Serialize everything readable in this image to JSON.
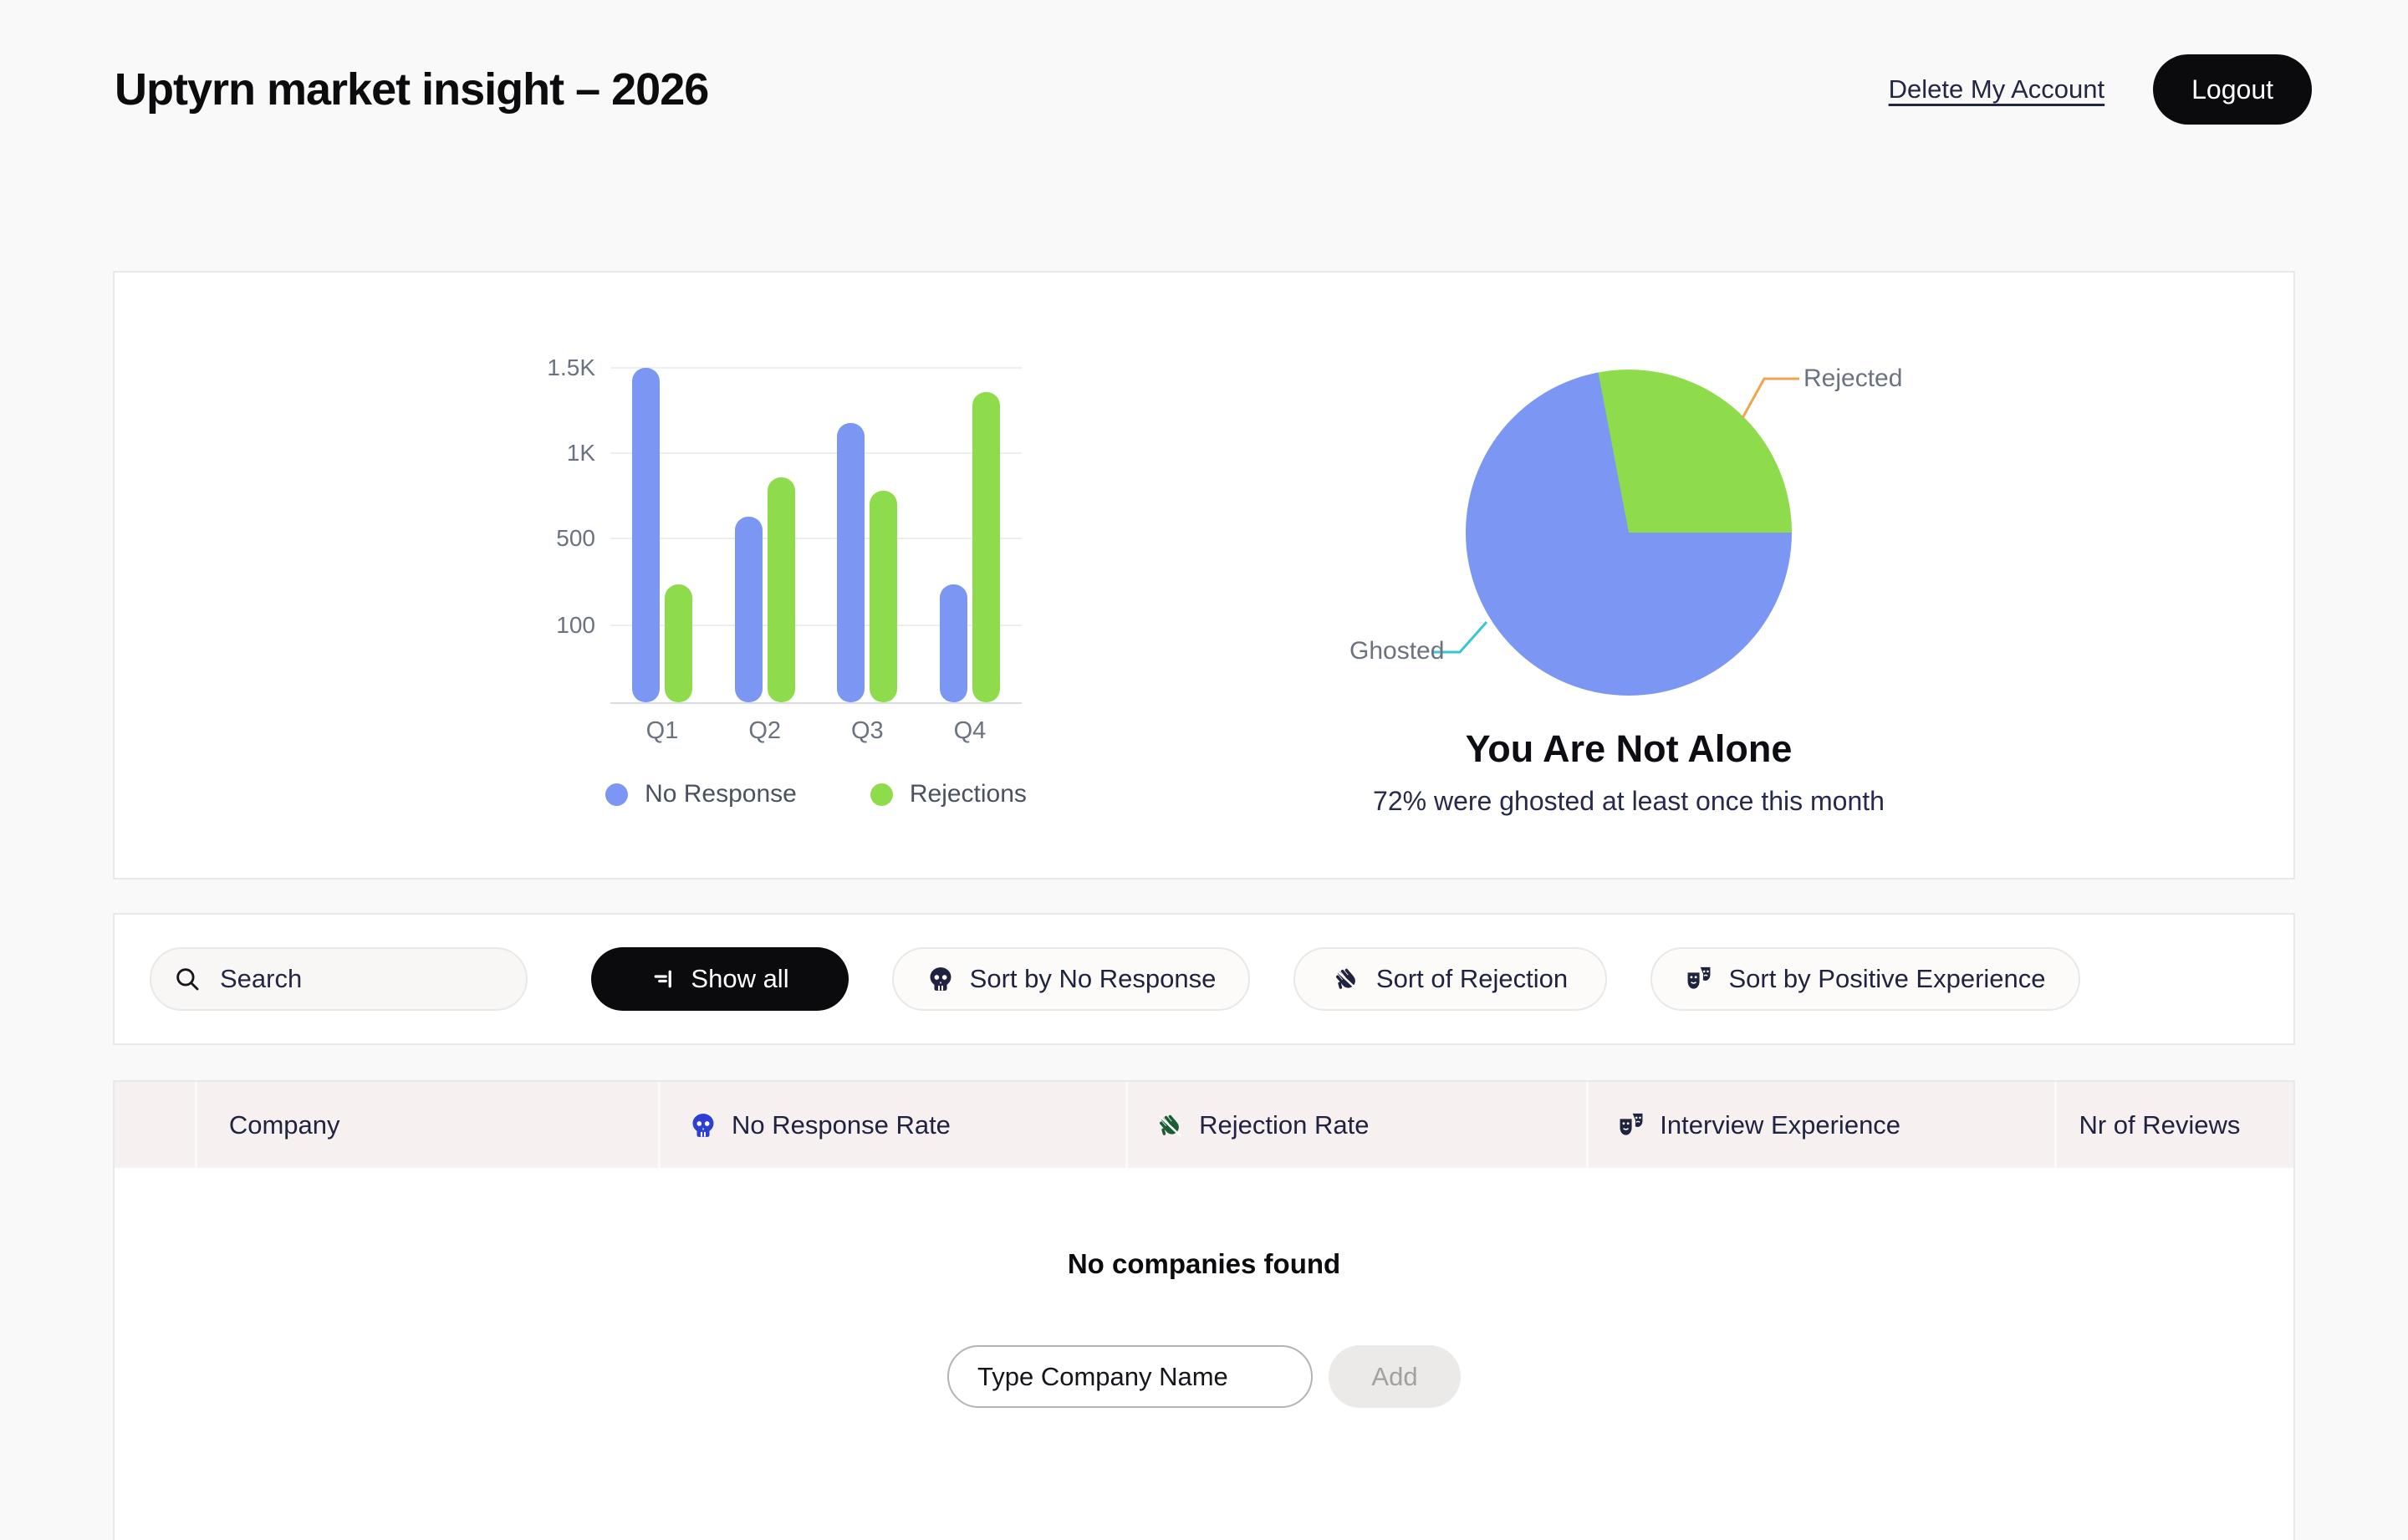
{
  "header": {
    "title": "Uptyrn market insight – 2026",
    "delete_account": "Delete My Account",
    "logout": "Logout"
  },
  "colors": {
    "page_bg": "#f9f9f9",
    "accent_black": "#0b0b0e",
    "bar_blue": "#7b96f3",
    "bar_green": "#8edc4b",
    "callout_orange": "#f2a44c",
    "callout_teal": "#38c7d2",
    "table_header_bg": "#f6f1f0",
    "skull_icon_blue": "#2e3fd4",
    "hand_icon_green": "#1b5e33"
  },
  "chart_data": [
    {
      "type": "bar",
      "categories": [
        "Q1",
        "Q2",
        "Q3",
        "Q4"
      ],
      "series": [
        {
          "name": "No Response",
          "color": "#7b96f3",
          "values": [
            1500,
            630,
            1180,
            290
          ]
        },
        {
          "name": "Rejections",
          "color": "#8edc4b",
          "values": [
            290,
            860,
            780,
            1360
          ]
        }
      ],
      "yticks": [
        {
          "label": "100",
          "value": 100
        },
        {
          "label": "500",
          "value": 500
        },
        {
          "label": "1K",
          "value": 1000
        },
        {
          "label": "1.5K",
          "value": 1500
        }
      ],
      "ylim": [
        0,
        1500
      ],
      "grid": true,
      "legend_position": "bottom"
    },
    {
      "type": "pie",
      "slices": [
        {
          "label": "Ghosted",
          "value": 72,
          "color": "#7b96f3",
          "callout_color": "#38c7d2"
        },
        {
          "label": "Rejected",
          "value": 28,
          "color": "#8edc4b",
          "callout_color": "#f2a44c"
        }
      ],
      "title": "You Are Not Alone",
      "subtitle": "72% were ghosted at least once this month"
    }
  ],
  "filters": {
    "search_placeholder": "Search",
    "show_all": "Show all",
    "sort_no_response": "Sort by No Response",
    "sort_rejection": "Sort of Rejection",
    "sort_positive": "Sort by Positive Experience"
  },
  "table": {
    "columns": [
      {
        "label": "",
        "icon": null
      },
      {
        "label": "Company",
        "icon": null
      },
      {
        "label": "No Response Rate",
        "icon": "skull"
      },
      {
        "label": "Rejection Rate",
        "icon": "hand"
      },
      {
        "label": "Interview Experience",
        "icon": "masks"
      },
      {
        "label": "Nr of Reviews",
        "icon": null
      }
    ],
    "empty_message": "No companies found",
    "add_placeholder": "Type Company Name",
    "add_button": "Add"
  }
}
